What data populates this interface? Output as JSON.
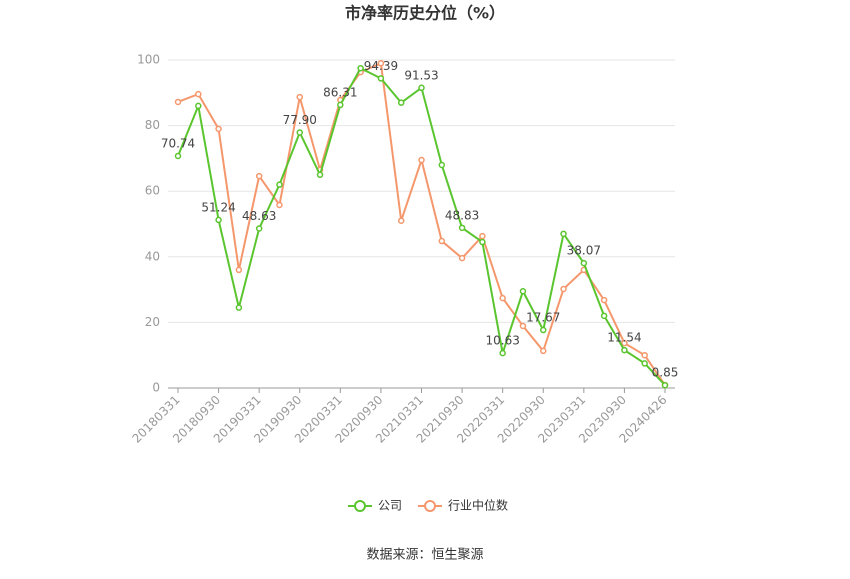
{
  "chart_data": {
    "type": "line",
    "title": "市净率历史分位（%）",
    "source": "数据来源：恒生聚源",
    "categories": [
      "20180331",
      null,
      "20180930",
      null,
      "20190331",
      null,
      "20190930",
      null,
      "20200331",
      null,
      "20200930",
      null,
      "20210331",
      null,
      "20210930",
      null,
      "20220331",
      null,
      "20220930",
      null,
      "20230331",
      null,
      "20230930",
      null,
      "20240426"
    ],
    "series": [
      {
        "name": "公司",
        "color": "#5ac52e",
        "values": [
          70.74,
          86,
          51.24,
          24.5,
          48.63,
          62,
          77.9,
          65,
          86.31,
          97.5,
          94.39,
          87,
          91.53,
          68,
          48.83,
          44.5,
          10.63,
          29.5,
          17.67,
          47,
          38.07,
          22,
          11.54,
          7.5,
          0.85
        ],
        "value_labels": [
          "70.74",
          null,
          "51.24",
          null,
          "48.63",
          null,
          "77.90",
          null,
          "86.31",
          null,
          "94.39",
          null,
          "91.53",
          null,
          "48.83",
          null,
          "10.63",
          null,
          "17.67",
          null,
          "38.07",
          null,
          "11.54",
          null,
          "0.85"
        ]
      },
      {
        "name": "行业中位数",
        "color": "#f5976c",
        "values": [
          87.2,
          89.6,
          79,
          36,
          64.6,
          55.8,
          88.7,
          66.5,
          87.8,
          96.3,
          99,
          51,
          69.5,
          44.8,
          39.6,
          46.3,
          27.4,
          18.9,
          11.3,
          30.2,
          36,
          26.8,
          13.7,
          10,
          0.9
        ]
      }
    ],
    "ylim": [
      0,
      100
    ],
    "yticks": [
      0,
      20,
      40,
      60,
      80,
      100
    ],
    "grid": true,
    "legend": "bottom"
  }
}
